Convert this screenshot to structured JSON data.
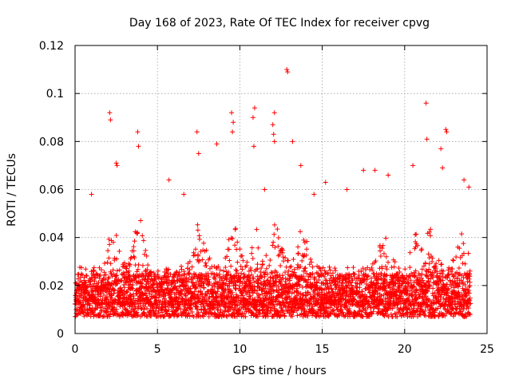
{
  "chart_data": {
    "type": "scatter",
    "title": "Day 168 of 2023, Rate Of TEC Index for receiver cpvg",
    "xlabel": "GPS time / hours",
    "ylabel": "ROTI / TECUs",
    "xlim": [
      0,
      25
    ],
    "ylim": [
      0,
      0.12
    ],
    "xticks": [
      0,
      5,
      10,
      15,
      20,
      25
    ],
    "xtick_labels": [
      "0",
      "5",
      "10",
      "15",
      "20",
      "25"
    ],
    "yticks": [
      0,
      0.02,
      0.04,
      0.06,
      0.08,
      0.1,
      0.12
    ],
    "ytick_labels": [
      "0",
      "0.02",
      "0.04",
      "0.06",
      "0.08",
      "0.1",
      "0.12"
    ],
    "grid": true,
    "marker": "+",
    "color": "#ff0000",
    "data_range_hours": [
      0,
      24
    ],
    "typical_band": [
      0.007,
      0.025
    ],
    "series": [
      {
        "name": "ROTI",
        "outliers": [
          {
            "x": 2.1,
            "y": 0.092
          },
          {
            "x": 2.15,
            "y": 0.089
          },
          {
            "x": 2.5,
            "y": 0.071
          },
          {
            "x": 2.55,
            "y": 0.07
          },
          {
            "x": 3.8,
            "y": 0.084
          },
          {
            "x": 3.85,
            "y": 0.078
          },
          {
            "x": 7.4,
            "y": 0.084
          },
          {
            "x": 7.5,
            "y": 0.075
          },
          {
            "x": 8.6,
            "y": 0.079
          },
          {
            "x": 9.5,
            "y": 0.092
          },
          {
            "x": 9.6,
            "y": 0.088
          },
          {
            "x": 9.55,
            "y": 0.084
          },
          {
            "x": 10.9,
            "y": 0.094
          },
          {
            "x": 10.8,
            "y": 0.09
          },
          {
            "x": 10.85,
            "y": 0.078
          },
          {
            "x": 12.1,
            "y": 0.092
          },
          {
            "x": 12.0,
            "y": 0.087
          },
          {
            "x": 12.05,
            "y": 0.083
          },
          {
            "x": 12.1,
            "y": 0.08
          },
          {
            "x": 12.85,
            "y": 0.11
          },
          {
            "x": 12.9,
            "y": 0.109
          },
          {
            "x": 13.2,
            "y": 0.08
          },
          {
            "x": 13.7,
            "y": 0.07
          },
          {
            "x": 17.5,
            "y": 0.068
          },
          {
            "x": 18.2,
            "y": 0.068
          },
          {
            "x": 19.0,
            "y": 0.066
          },
          {
            "x": 20.5,
            "y": 0.07
          },
          {
            "x": 21.3,
            "y": 0.096
          },
          {
            "x": 21.35,
            "y": 0.081
          },
          {
            "x": 22.2,
            "y": 0.077
          },
          {
            "x": 22.3,
            "y": 0.069
          },
          {
            "x": 22.5,
            "y": 0.085
          },
          {
            "x": 22.55,
            "y": 0.084
          },
          {
            "x": 23.6,
            "y": 0.064
          },
          {
            "x": 1.0,
            "y": 0.058
          },
          {
            "x": 5.7,
            "y": 0.064
          },
          {
            "x": 11.5,
            "y": 0.06
          },
          {
            "x": 15.2,
            "y": 0.063
          },
          {
            "x": 16.5,
            "y": 0.06
          },
          {
            "x": 6.6,
            "y": 0.058
          },
          {
            "x": 14.5,
            "y": 0.058
          },
          {
            "x": 23.9,
            "y": 0.061
          }
        ]
      }
    ]
  }
}
